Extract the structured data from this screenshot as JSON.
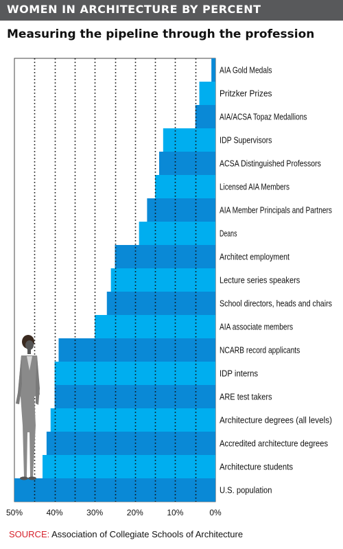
{
  "title": "WOMEN IN ARCHITECTURE BY PERCENT",
  "subtitle": "Measuring the pipeline through the profession",
  "source_label": "SOURCE:",
  "source_text": "Association of Collegiate Schools of Architecture",
  "colors": {
    "title_band": "#58595b",
    "bar_light": "#00aeef",
    "bar_dark": "#0a89d6",
    "source_label": "#d6212b",
    "figure": "#8a8a8a"
  },
  "icons": [
    "woman-figure-icon"
  ],
  "chart_data": {
    "type": "bar",
    "orientation": "horizontal",
    "x_reversed": true,
    "xlim": [
      0,
      50
    ],
    "x_ticks": [
      "50%",
      "40%",
      "30%",
      "20%",
      "10%",
      "0%"
    ],
    "x_tick_values": [
      50,
      40,
      30,
      20,
      10,
      0
    ],
    "grid": "vertical dotted",
    "categories": [
      "AIA Gold Medals",
      "Pritzker Prizes",
      "AIA/ACSA Topaz Medallions",
      "IDP Supervisors",
      "ACSA Distinguished Professors",
      "Licensed AIA Members",
      "AIA Member Principals and Partners",
      "Deans",
      "Architect employment",
      "Lecture series speakers",
      "School directors, heads and chairs",
      "AIA associate members",
      "NCARB record applicants",
      "IDP interns",
      "ARE test takers",
      "Architecture degrees (all levels)",
      "Accredited architecture degrees",
      "Architecture students",
      "U.S. population"
    ],
    "values": [
      1,
      4,
      5,
      13,
      14,
      15,
      17,
      19,
      25,
      26,
      27,
      30,
      39,
      40,
      40,
      41,
      42,
      43,
      50
    ]
  }
}
